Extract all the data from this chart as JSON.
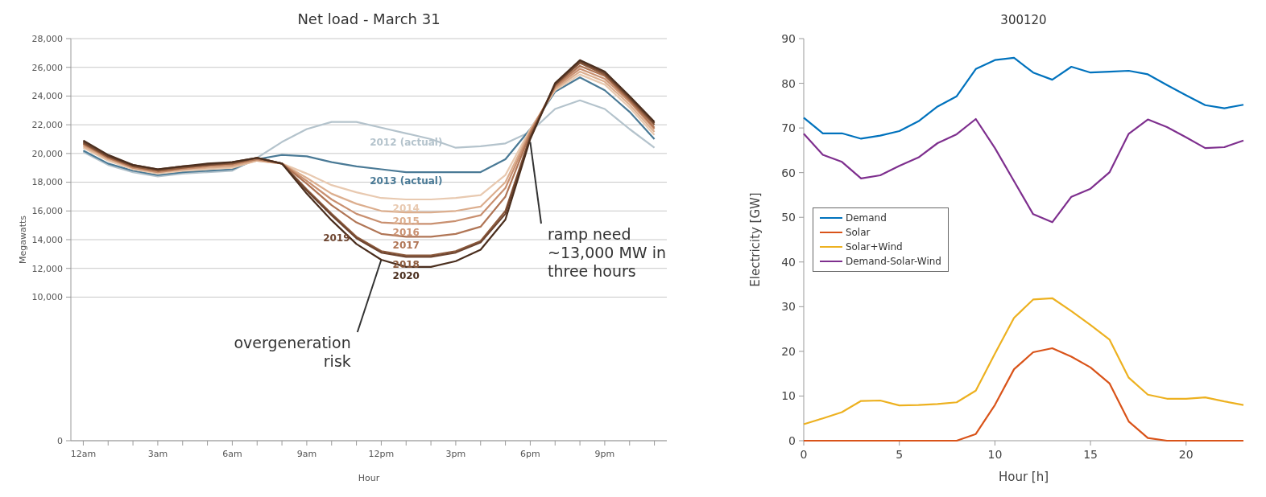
{
  "chart_data": [
    {
      "type": "line",
      "title": "Net load - March 31",
      "xlabel": "Hour",
      "ylabel": "Megawatts",
      "categories": [
        "12am",
        null,
        null,
        "3am",
        null,
        null,
        "6am",
        null,
        null,
        "9am",
        null,
        null,
        "12pm",
        null,
        null,
        "3pm",
        null,
        null,
        "6pm",
        null,
        null,
        "9pm",
        null,
        null
      ],
      "ylim": [
        0,
        28000
      ],
      "yticks": [
        {
          "value": 0,
          "label": "0"
        },
        {
          "value": 10000,
          "label": "10,000"
        },
        {
          "value": 12000,
          "label": "12,000"
        },
        {
          "value": 14000,
          "label": "14,000"
        },
        {
          "value": 16000,
          "label": "16,000"
        },
        {
          "value": 18000,
          "label": "18,000"
        },
        {
          "value": 20000,
          "label": "20,000"
        },
        {
          "value": 22000,
          "label": "22,000"
        },
        {
          "value": 24000,
          "label": "24,000"
        },
        {
          "value": 26000,
          "label": "26,000"
        },
        {
          "value": 28000,
          "label": "28,000"
        }
      ],
      "grid": "y",
      "legend": false,
      "marker": "none",
      "line_style": "solid",
      "series": [
        {
          "name": "2012 (actual)",
          "color": "#b4c3cc",
          "values": [
            20100,
            19200,
            18700,
            18400,
            18600,
            18700,
            18800,
            19700,
            20800,
            21700,
            22200,
            22200,
            21800,
            21400,
            21000,
            20400,
            20500,
            20700,
            21500,
            23100,
            23700,
            23100,
            21700,
            20400
          ]
        },
        {
          "name": "2013 (actual)",
          "color": "#4a7a96",
          "values": [
            20200,
            19300,
            18800,
            18500,
            18700,
            18800,
            18900,
            19600,
            19900,
            19800,
            19400,
            19100,
            18900,
            18700,
            18700,
            18700,
            18700,
            19600,
            21700,
            24300,
            25300,
            24400,
            22900,
            21000
          ]
        },
        {
          "name": "2014",
          "color": "#e8c9b0",
          "values": [
            20400,
            19500,
            18900,
            18600,
            18800,
            18900,
            19000,
            19500,
            19300,
            18600,
            17800,
            17300,
            16900,
            16800,
            16800,
            16900,
            17100,
            18500,
            21700,
            24400,
            25500,
            24800,
            23200,
            21300
          ]
        },
        {
          "name": "2015",
          "color": "#dcae8e",
          "values": [
            20500,
            19600,
            19000,
            18700,
            18900,
            19000,
            19100,
            19500,
            19300,
            18300,
            17200,
            16500,
            16000,
            15900,
            15900,
            16000,
            16300,
            18000,
            21600,
            24500,
            25700,
            25000,
            23400,
            21500
          ]
        },
        {
          "name": "2016",
          "color": "#c99070",
          "values": [
            20600,
            19700,
            19000,
            18700,
            18900,
            19100,
            19200,
            19600,
            19300,
            18100,
            16800,
            15800,
            15200,
            15100,
            15100,
            15300,
            15700,
            17600,
            21500,
            24600,
            25900,
            25200,
            23600,
            21700
          ]
        },
        {
          "name": "2017",
          "color": "#b07555",
          "values": [
            20700,
            19700,
            19100,
            18800,
            19000,
            19200,
            19300,
            19600,
            19300,
            17900,
            16400,
            15200,
            14400,
            14200,
            14200,
            14400,
            14900,
            17000,
            21400,
            24700,
            26100,
            25400,
            23700,
            21800
          ]
        },
        {
          "name": "2018",
          "color": "#8c5a3c",
          "values": [
            20700,
            19800,
            19100,
            18800,
            19000,
            19200,
            19300,
            19700,
            19300,
            17500,
            15800,
            14200,
            13200,
            12900,
            12900,
            13200,
            13900,
            16000,
            21200,
            24800,
            26300,
            25500,
            23800,
            22000
          ]
        },
        {
          "name": "2019",
          "color": "#6e4530",
          "values": [
            20800,
            19800,
            19200,
            18900,
            19100,
            19200,
            19400,
            19700,
            19300,
            17400,
            15700,
            14100,
            13100,
            12800,
            12800,
            13100,
            13800,
            15800,
            21100,
            24800,
            26400,
            25600,
            23900,
            22100
          ]
        },
        {
          "name": "2020",
          "color": "#4a2e1e",
          "values": [
            20900,
            19900,
            19200,
            18900,
            19100,
            19300,
            19400,
            19700,
            19300,
            17200,
            15350,
            13700,
            12600,
            12100,
            12100,
            12500,
            13300,
            15400,
            21000,
            24900,
            26500,
            25700,
            24000,
            22200
          ]
        }
      ],
      "annotations": [
        {
          "text": "ramp need ~13,000 MW in three hours",
          "x": "6pm",
          "y": 20800
        },
        {
          "text": "overgeneration risk",
          "x": "12pm",
          "y": 12600
        }
      ]
    },
    {
      "type": "line",
      "title": "300120",
      "xlabel": "Hour [h]",
      "ylabel": "Electricity [GW]",
      "x": [
        0,
        1,
        2,
        3,
        4,
        5,
        6,
        7,
        8,
        9,
        10,
        11,
        12,
        13,
        14,
        15,
        16,
        17,
        18,
        19,
        20,
        21,
        22,
        23
      ],
      "xlim": [
        0,
        23
      ],
      "xticks": [
        0,
        5,
        10,
        15,
        20
      ],
      "ylim": [
        0,
        90
      ],
      "yticks": [
        0,
        10,
        20,
        30,
        40,
        50,
        60,
        70,
        80,
        90
      ],
      "grid": false,
      "legend": "left",
      "marker": "none",
      "line_style": "solid",
      "series": [
        {
          "name": "Demand",
          "color": "#0072bd",
          "values": [
            72.3,
            68.8,
            68.8,
            67.6,
            68.3,
            69.3,
            71.5,
            74.8,
            77.1,
            83.2,
            85.2,
            85.7,
            82.4,
            80.8,
            83.7,
            82.4,
            82.6,
            82.8,
            82.0,
            79.6,
            77.3,
            75.1,
            74.4,
            75.2
          ]
        },
        {
          "name": "Solar",
          "color": "#d95319",
          "values": [
            0,
            0,
            0,
            0,
            0,
            0,
            0,
            0,
            0,
            1.5,
            8.0,
            16.0,
            19.8,
            20.7,
            18.8,
            16.4,
            12.8,
            4.3,
            0.6,
            0,
            0,
            0,
            0,
            0
          ]
        },
        {
          "name": "Solar+Wind",
          "color": "#edb120",
          "values": [
            3.7,
            5.0,
            6.4,
            8.9,
            9.0,
            7.9,
            8.0,
            8.2,
            8.6,
            11.2,
            19.5,
            27.5,
            31.6,
            31.9,
            29.0,
            25.9,
            22.6,
            14.1,
            10.3,
            9.4,
            9.4,
            9.7,
            8.8,
            8.0
          ]
        },
        {
          "name": "Demand-Solar-Wind",
          "color": "#7e2f8e",
          "values": [
            68.7,
            64.0,
            62.4,
            58.7,
            59.4,
            61.5,
            63.4,
            66.6,
            68.6,
            72.0,
            65.5,
            58.1,
            50.7,
            48.9,
            54.6,
            56.4,
            60.1,
            68.7,
            71.9,
            70.2,
            67.9,
            65.5,
            65.7,
            67.2
          ]
        }
      ]
    }
  ]
}
